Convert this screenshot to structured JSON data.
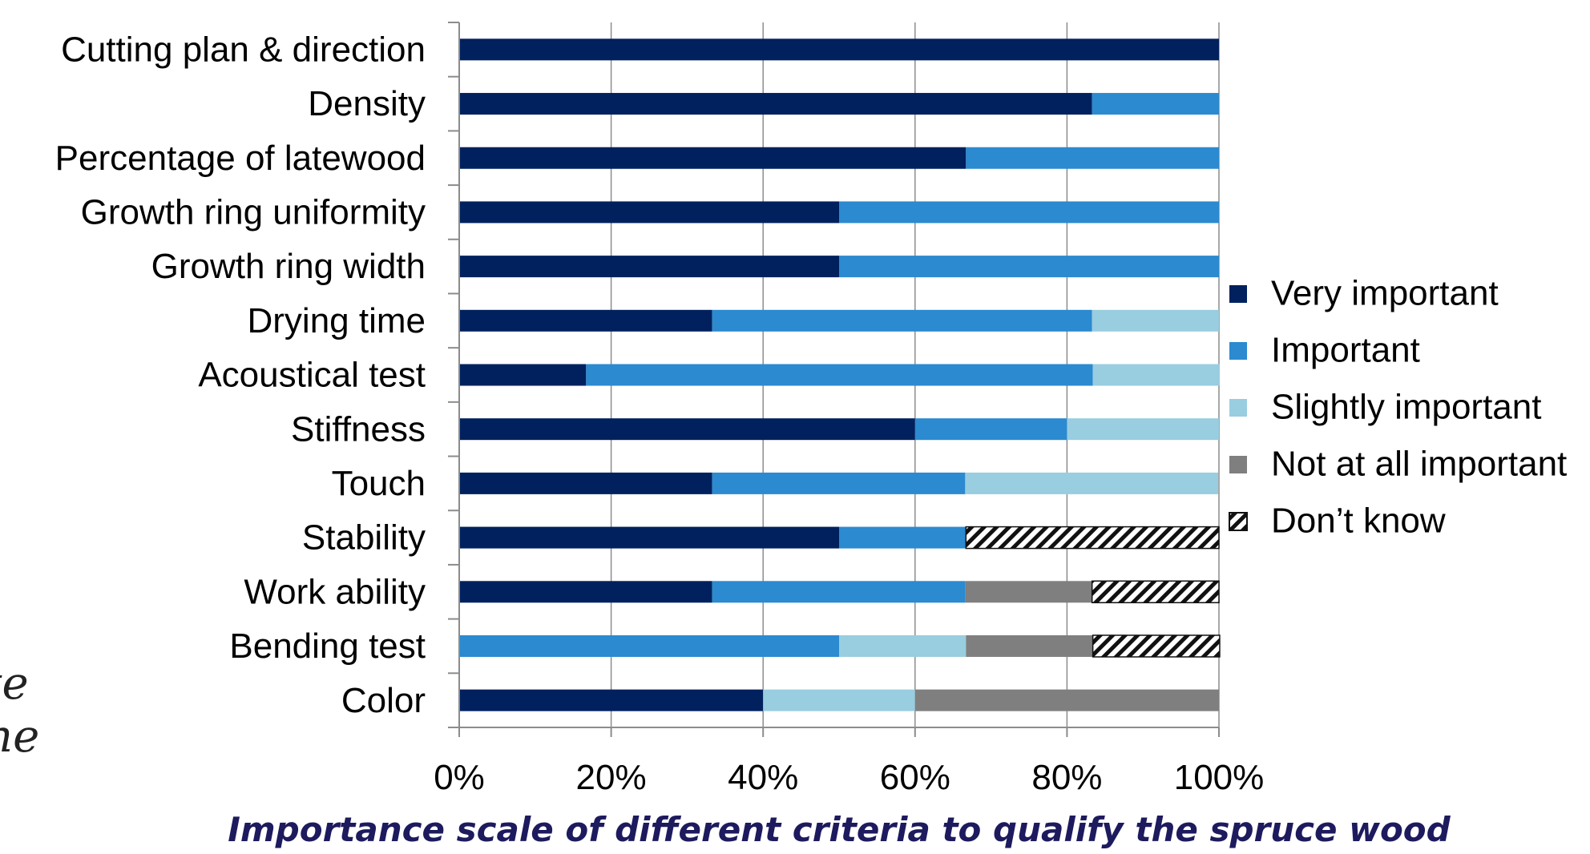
{
  "colors": {
    "very_important": "#00215e",
    "important": "#2b8ad0",
    "slightly_important": "#99cde0",
    "not_at_all_important": "#7f7f7f",
    "dont_know": "hatch"
  },
  "side_text": [
    "te",
    "ne"
  ],
  "chart_data": {
    "type": "bar",
    "orientation": "horizontal",
    "stacked": "100%",
    "title": "",
    "xlabel": "Importance scale of different criteria to qualify the spruce wood",
    "ylabel": "",
    "xlim": [
      0,
      100
    ],
    "x_ticks": [
      "0%",
      "20%",
      "40%",
      "60%",
      "80%",
      "100%"
    ],
    "grid": "vertical gridlines at x ticks",
    "legend_position": "right",
    "categories": [
      "Cutting plan & direction",
      "Density",
      "Percentage of latewood",
      "Growth ring uniformity",
      "Growth ring width",
      "Drying time",
      "Acoustical test",
      "Stiffness",
      "Touch",
      "Stability",
      "Work ability",
      "Bending test",
      "Color"
    ],
    "series": [
      {
        "name": "Very important",
        "values": [
          100,
          83.3,
          66.7,
          50,
          50,
          33.3,
          16.7,
          60,
          33.3,
          50,
          33.3,
          0,
          40
        ]
      },
      {
        "name": "Important",
        "values": [
          0,
          16.7,
          33.3,
          50,
          50,
          50,
          66.7,
          20,
          33.3,
          16.7,
          33.3,
          50,
          0
        ]
      },
      {
        "name": "Slightly important",
        "values": [
          0,
          0,
          0,
          0,
          0,
          16.7,
          16.7,
          20,
          33.3,
          0,
          0,
          16.7,
          20
        ]
      },
      {
        "name": "Not at all important",
        "values": [
          0,
          0,
          0,
          0,
          0,
          0,
          0,
          0,
          0,
          0,
          16.7,
          16.7,
          40
        ]
      },
      {
        "name": "Don’t know",
        "values": [
          0,
          0,
          0,
          0,
          0,
          0,
          0,
          0,
          0,
          33.3,
          16.7,
          16.7,
          0
        ]
      }
    ]
  }
}
